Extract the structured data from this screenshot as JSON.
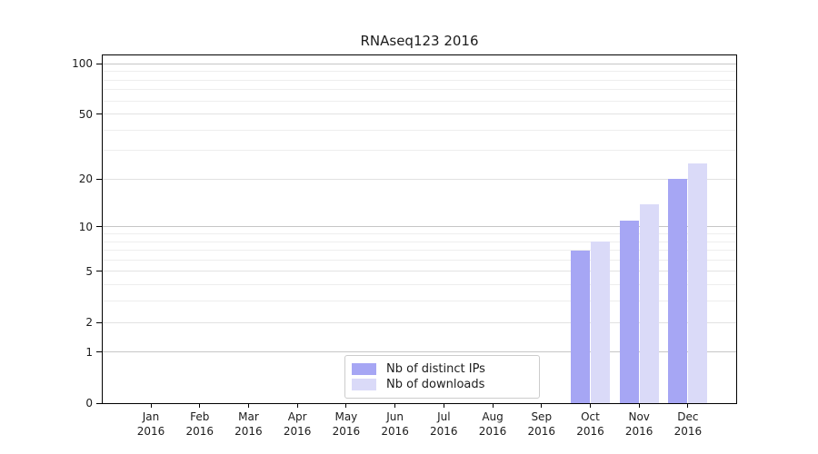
{
  "chart_data": {
    "type": "bar",
    "title": "RNAseq123 2016",
    "x_categories": [
      {
        "month": "Jan",
        "year": "2016"
      },
      {
        "month": "Feb",
        "year": "2016"
      },
      {
        "month": "Mar",
        "year": "2016"
      },
      {
        "month": "Apr",
        "year": "2016"
      },
      {
        "month": "May",
        "year": "2016"
      },
      {
        "month": "Jun",
        "year": "2016"
      },
      {
        "month": "Jul",
        "year": "2016"
      },
      {
        "month": "Aug",
        "year": "2016"
      },
      {
        "month": "Sep",
        "year": "2016"
      },
      {
        "month": "Oct",
        "year": "2016"
      },
      {
        "month": "Nov",
        "year": "2016"
      },
      {
        "month": "Dec",
        "year": "2016"
      }
    ],
    "series": [
      {
        "name": "Nb of distinct IPs",
        "color": "#a6a6f4",
        "values": [
          null,
          null,
          null,
          null,
          null,
          null,
          null,
          null,
          null,
          7,
          11,
          20
        ]
      },
      {
        "name": "Nb of downloads",
        "color": "#dadaf8",
        "values": [
          null,
          null,
          null,
          null,
          null,
          null,
          null,
          null,
          null,
          8,
          14,
          25
        ]
      }
    ],
    "y_axis": {
      "scale": "log1p",
      "labeled_ticks": [
        0,
        1,
        2,
        5,
        10,
        20,
        50,
        100
      ],
      "major_gridlines": [
        1,
        10,
        100
      ],
      "mid_gridlines": [
        2,
        5,
        20,
        50
      ],
      "minor_gridlines": [
        3,
        4,
        6,
        7,
        8,
        9,
        30,
        40,
        60,
        70,
        80,
        90
      ]
    },
    "legend": {
      "position": "bottom-center",
      "entries": [
        "Nb of distinct IPs",
        "Nb of downloads"
      ]
    },
    "colors": {
      "axis": "#000000",
      "major_grid": "#c6c6c6",
      "mid_grid": "#e2e2e2",
      "minor_grid": "#eeeeee",
      "text": "#1c1c1c"
    }
  }
}
